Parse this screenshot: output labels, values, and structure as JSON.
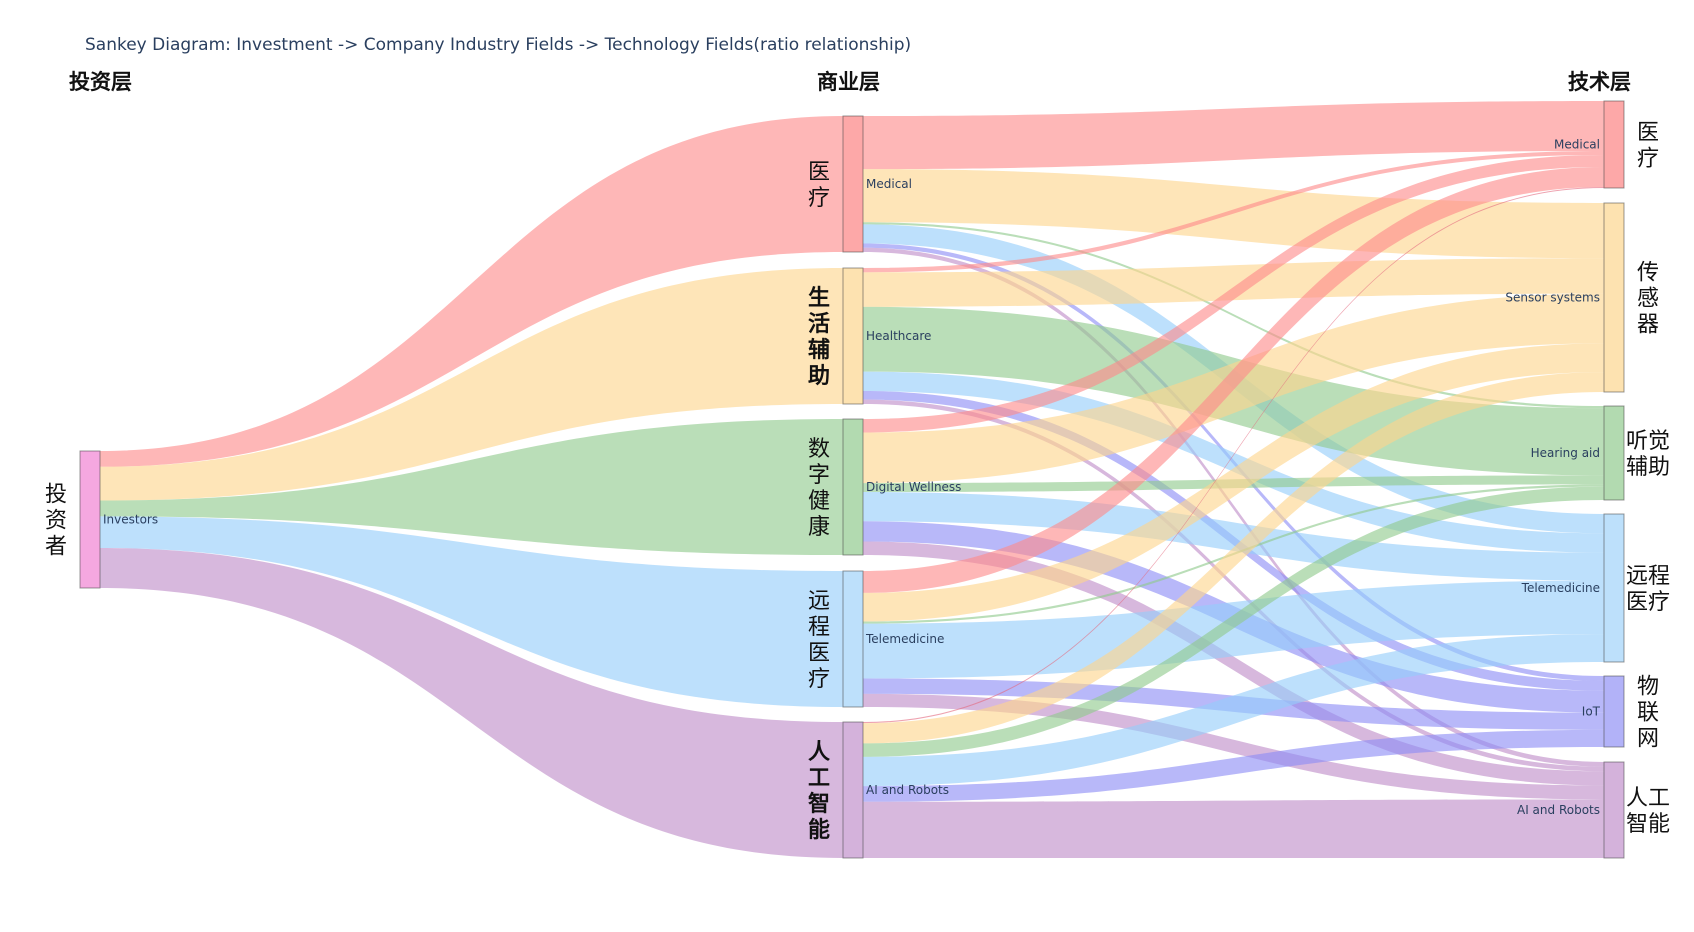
{
  "title": "Sankey Diagram: Investment -> Company Industry Fields -> Technology Fields(ratio relationship)",
  "layers": {
    "investment": "投资层",
    "business": "商业层",
    "technology": "技术层"
  },
  "chart_data": {
    "type": "sankey",
    "nodes": [
      {
        "id": "investors",
        "label": "Investors",
        "cn": "投资者",
        "color": "#f5a8e0",
        "cn_bold": false
      },
      {
        "id": "medical_b",
        "label": "Medical",
        "cn": "医疗",
        "color": "#fda8a8",
        "cn_bold": false
      },
      {
        "id": "healthcare",
        "label": "Healthcare",
        "cn": "生活辅助",
        "color": "#fde2b0",
        "cn_bold": true
      },
      {
        "id": "wellness",
        "label": "Digital Wellness",
        "cn": "数字健康",
        "color": "#b2dab0",
        "cn_bold": false
      },
      {
        "id": "telemed_b",
        "label": "Telemedicine",
        "cn": "远程医疗",
        "color": "#bde0fb",
        "cn_bold": false
      },
      {
        "id": "ai_b",
        "label": "AI and Robots",
        "cn": "人工智能",
        "color": "#d4b2db",
        "cn_bold": true
      },
      {
        "id": "medical_t",
        "label": "Medical",
        "cn": "医疗",
        "color": "#fda8a8",
        "cn_bold": false
      },
      {
        "id": "sensor_t",
        "label": "Sensor systems",
        "cn": "传感器",
        "color": "#fde2b0",
        "cn_bold": false
      },
      {
        "id": "hearing_t",
        "label": "Hearing aid",
        "cn": "听觉辅助",
        "color": "#b2dab0",
        "cn_bold": false
      },
      {
        "id": "telemed_t",
        "label": "Telemedicine",
        "cn": "远程医疗",
        "color": "#bde0fb",
        "cn_bold": false
      },
      {
        "id": "iot_t",
        "label": "IoT",
        "cn": "物联网",
        "color": "#b2b2f8",
        "cn_bold": false
      },
      {
        "id": "ai_t",
        "label": "AI and Robots",
        "cn": "人工智能",
        "color": "#d4b2db",
        "cn_bold": false
      }
    ],
    "links": [
      {
        "source": "investors",
        "target": "medical_b",
        "value": 15,
        "color": "#fd8b8b"
      },
      {
        "source": "investors",
        "target": "healthcare",
        "value": 32,
        "color": "#fdd58d"
      },
      {
        "source": "investors",
        "target": "wellness",
        "value": 15,
        "color": "#8fca8d"
      },
      {
        "source": "investors",
        "target": "telemed_b",
        "value": 30,
        "color": "#95cdfa"
      },
      {
        "source": "investors",
        "target": "ai_b",
        "value": 38,
        "color": "#bf8dc8"
      },
      {
        "source": "medical_b",
        "target": "medical_t",
        "value": 50,
        "color": "#fd8b8b"
      },
      {
        "source": "medical_b",
        "target": "sensor_t",
        "value": 50,
        "color": "#fdd58d"
      },
      {
        "source": "medical_b",
        "target": "hearing_t",
        "value": 2,
        "color": "#8fca8d"
      },
      {
        "source": "medical_b",
        "target": "telemed_b_skip",
        "value": 0,
        "color": "#95cdfa"
      },
      {
        "source": "medical_b",
        "target": "telemed_t",
        "value": 18,
        "color": "#95cdfa"
      },
      {
        "source": "medical_b",
        "target": "iot_t",
        "value": 4,
        "color": "#8d8df5"
      },
      {
        "source": "medical_b",
        "target": "ai_t",
        "value": 4,
        "color": "#bf8dc8"
      },
      {
        "source": "healthcare",
        "target": "medical_t",
        "value": 4,
        "color": "#fd8b8b"
      },
      {
        "source": "healthcare",
        "target": "sensor_t",
        "value": 32,
        "color": "#fdd58d"
      },
      {
        "source": "healthcare",
        "target": "hearing_t",
        "value": 60,
        "color": "#8fca8d"
      },
      {
        "source": "healthcare",
        "target": "telemed_t",
        "value": 18,
        "color": "#95cdfa"
      },
      {
        "source": "healthcare",
        "target": "iot_t",
        "value": 8,
        "color": "#8d8df5"
      },
      {
        "source": "healthcare",
        "target": "ai_t",
        "value": 4,
        "color": "#bf8dc8"
      },
      {
        "source": "wellness",
        "target": "medical_t",
        "value": 12,
        "color": "#fd8b8b"
      },
      {
        "source": "wellness",
        "target": "sensor_t",
        "value": 45,
        "color": "#fdd58d"
      },
      {
        "source": "wellness",
        "target": "hearing_t",
        "value": 8,
        "color": "#8fca8d"
      },
      {
        "source": "wellness",
        "target": "telemed_t",
        "value": 26,
        "color": "#95cdfa"
      },
      {
        "source": "wellness",
        "target": "iot_t",
        "value": 18,
        "color": "#8d8df5"
      },
      {
        "source": "wellness",
        "target": "ai_t",
        "value": 12,
        "color": "#bf8dc8"
      },
      {
        "source": "telemed_b",
        "target": "medical_t",
        "value": 20,
        "color": "#fd8b8b"
      },
      {
        "source": "telemed_b",
        "target": "sensor_t",
        "value": 26,
        "color": "#fdd58d"
      },
      {
        "source": "telemed_b",
        "target": "hearing_t",
        "value": 2,
        "color": "#8fca8d"
      },
      {
        "source": "telemed_b",
        "target": "telemed_t",
        "value": 50,
        "color": "#95cdfa"
      },
      {
        "source": "telemed_b",
        "target": "iot_t",
        "value": 14,
        "color": "#8d8df5"
      },
      {
        "source": "telemed_b",
        "target": "ai_t",
        "value": 12,
        "color": "#bf8dc8"
      },
      {
        "source": "ai_b",
        "target": "medical_t",
        "value": 1,
        "color": "#e36a80"
      },
      {
        "source": "ai_b",
        "target": "sensor_t",
        "value": 18,
        "color": "#fdd58d"
      },
      {
        "source": "ai_b",
        "target": "hearing_t",
        "value": 12,
        "color": "#8fca8d"
      },
      {
        "source": "ai_b",
        "target": "telemed_t",
        "value": 26,
        "color": "#95cdfa"
      },
      {
        "source": "ai_b",
        "target": "iot_t",
        "value": 14,
        "color": "#8d8df5"
      },
      {
        "source": "ai_b",
        "target": "ai_t",
        "value": 50,
        "color": "#bf8dc8"
      }
    ]
  }
}
